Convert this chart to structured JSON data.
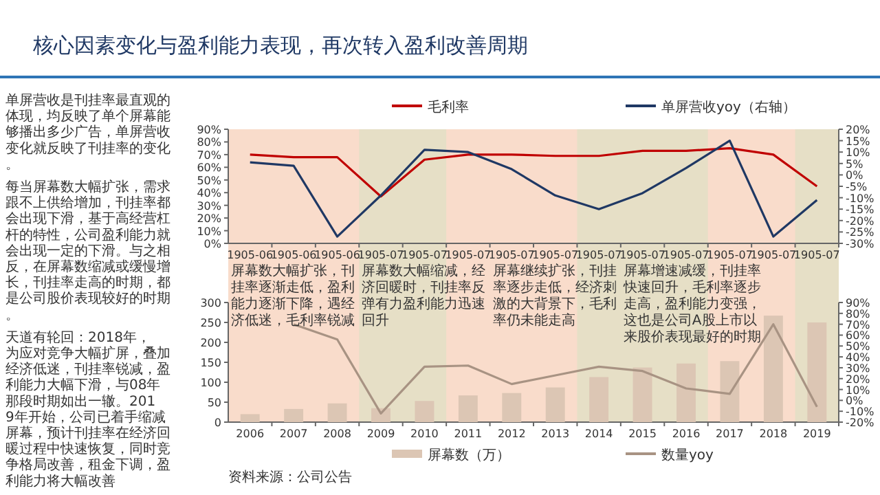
{
  "chart_data": [
    {
      "type": "other",
      "title": "核心因素变化与盈利能力表现，再次转入盈利改善周期",
      "annotations": [
        "单屏营收是刊挂率最直观的体现，均反映了单个屏幕能够播出多少广告，单屏营收变化就反映了刊挂率的变化。",
        "每当屏幕数大幅扩张，需求跟不上供给增加，刊挂率都会出现下滑，基于高经营杠杆的特性，公司盈利能力就会出现一定的下滑。与之相反，在屏幕数缩减或缓慢增长，刊挂率走高的时期，都是公司股价表现较好的时期。",
        "天道有轮回：2018年，为应对竞争大幅扩屏，叠加经济低迷，刊挂率锐减，盈利能力大幅下滑，与08年那段时期如出一辙。2019年开始，公司已着手缩减屏幕，预计刊挂率在经济回暖过程中快速恢复，同时竞争格局改善，租金下调，盈利能力将大幅改善"
      ]
    },
    {
      "type": "line",
      "categories": [
        "1905-06",
        "1905-06",
        "1905-06",
        "1905-07",
        "1905-07",
        "1905-07",
        "1905-07",
        "1905-07",
        "1905-07",
        "1905-07",
        "1905-07",
        "1905-07",
        "1905-07",
        "1905-07"
      ],
      "series": [
        {
          "name": "毛利率",
          "color": "#c00000",
          "values": [
            70,
            68,
            68,
            37,
            66,
            70,
            70,
            69,
            69,
            73,
            73,
            75,
            70,
            45
          ]
        },
        {
          "name": "单屏营收yoy（右轴）",
          "color": "#1f3864",
          "axis": "y2",
          "values": [
            5.5,
            4,
            -27,
            -9,
            11,
            10,
            2.5,
            -9,
            -15,
            -8,
            3,
            15,
            -27,
            -11
          ]
        }
      ],
      "ylim": [
        0,
        90
      ],
      "yticks": [
        {
          "value": 0,
          "label": "0%"
        },
        {
          "value": 10,
          "label": "10%"
        },
        {
          "value": 20,
          "label": "20%"
        },
        {
          "value": 30,
          "label": "30%"
        },
        {
          "value": 40,
          "label": "40%"
        },
        {
          "value": 50,
          "label": "50%"
        },
        {
          "value": 60,
          "label": "60%"
        },
        {
          "value": 70,
          "label": "70%"
        },
        {
          "value": 80,
          "label": "80%"
        },
        {
          "value": 90,
          "label": "90%"
        }
      ],
      "y2lim": [
        -30,
        20
      ],
      "y2ticks": [
        {
          "value": -30,
          "label": "-30%"
        },
        {
          "value": -25,
          "label": "-25%"
        },
        {
          "value": -20,
          "label": "-20%"
        },
        {
          "value": -15,
          "label": "-15%"
        },
        {
          "value": -10,
          "label": "-10%"
        },
        {
          "value": -5,
          "label": "-5%"
        },
        {
          "value": 0,
          "label": "0%"
        },
        {
          "value": 5,
          "label": "5%"
        },
        {
          "value": 10,
          "label": "10%"
        },
        {
          "value": 15,
          "label": "15%"
        },
        {
          "value": 20,
          "label": "20%"
        }
      ],
      "legend": "top"
    },
    {
      "type": "bar",
      "categories": [
        "2006",
        "2007",
        "2008",
        "2009",
        "2010",
        "2011",
        "2012",
        "2013",
        "2014",
        "2015",
        "2016",
        "2017",
        "2018",
        "2019"
      ],
      "series": [
        {
          "name": "屏幕数（万）",
          "color": "#dcc6b4",
          "values": [
            20,
            33,
            47,
            35,
            53,
            67,
            73,
            87,
            113,
            137,
            147,
            153,
            267,
            250
          ]
        },
        {
          "name": "数量yoy",
          "type": "line",
          "color": "#a89383",
          "axis": "y2",
          "values": [
            null,
            70,
            56,
            -12,
            31,
            32,
            15,
            23,
            31,
            27,
            11,
            6,
            70,
            -6
          ]
        }
      ],
      "ylim": [
        0,
        300
      ],
      "yticks": [
        0,
        50,
        100,
        150,
        200,
        250,
        300
      ],
      "y2lim": [
        -20,
        90
      ],
      "y2ticks": [
        {
          "value": -20,
          "label": "-20%"
        },
        {
          "value": -10,
          "label": "-10%"
        },
        {
          "value": 0,
          "label": "0%"
        },
        {
          "value": 10,
          "label": "10%"
        },
        {
          "value": 20,
          "label": "20%"
        },
        {
          "value": 30,
          "label": "30%"
        },
        {
          "value": 40,
          "label": "40%"
        },
        {
          "value": 50,
          "label": "50%"
        },
        {
          "value": 60,
          "label": "60%"
        },
        {
          "value": 70,
          "label": "70%"
        },
        {
          "value": 80,
          "label": "80%"
        },
        {
          "value": 90,
          "label": "90%"
        }
      ],
      "bands": [
        {
          "axis": "x",
          "from": "2009",
          "to": "2010",
          "color": "#e6dfc6"
        },
        {
          "axis": "x",
          "from": "2014",
          "to": "2016",
          "color": "#e6dfc6"
        },
        {
          "axis": "x",
          "from": "2019",
          "to": "2019",
          "color": "#e6dfc6"
        }
      ],
      "legend": "bottom",
      "annotations": [
        "屏幕数大幅扩张，刊挂率逐渐走低，盈利能力逐渐下降，遇经济低迷，毛利率锐减",
        "屏幕数大幅缩减，经济回暖时，刊挂率反弹有力盈利能力迅速回升",
        "屏幕继续扩张，刊挂率逐步走低，经济刺激的大背景下，毛利率仍未能走高",
        "屏幕增速减缓，刊挂率快速回升，毛利率逐步走高，盈利能力变强，这也是公司A股上市以来股价表现最好的时期",
        "资料来源：公司公告"
      ]
    }
  ]
}
